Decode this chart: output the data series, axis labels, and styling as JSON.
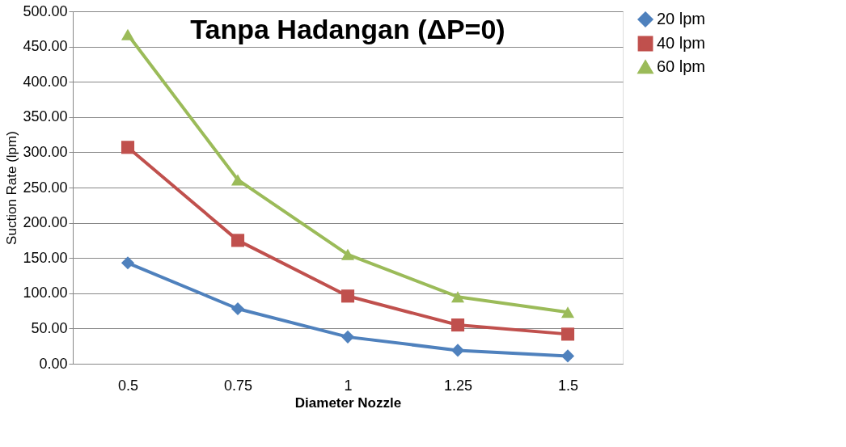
{
  "chart_data": {
    "type": "line",
    "title": "Tanpa Hadangan (ΔP=0)",
    "xlabel": "Diameter Nozzle",
    "ylabel": "Suction Rate (lpm)",
    "categories": [
      "0.5",
      "0.75",
      "1",
      "1.25",
      "1.5"
    ],
    "series": [
      {
        "name": "20 lpm",
        "color": "#4f81bd",
        "marker": "diamond",
        "values": [
          143,
          78,
          38,
          19,
          11
        ]
      },
      {
        "name": "40 lpm",
        "color": "#c0504d",
        "marker": "square",
        "values": [
          307,
          175,
          96,
          55,
          42
        ]
      },
      {
        "name": "60 lpm",
        "color": "#9bbb59",
        "marker": "triangle",
        "values": [
          467,
          261,
          155,
          95,
          73
        ]
      }
    ],
    "ylim": [
      0,
      500
    ],
    "yticks": [
      {
        "value": 0,
        "label": "0.00"
      },
      {
        "value": 50,
        "label": "50.00"
      },
      {
        "value": 100,
        "label": "100.00"
      },
      {
        "value": 150,
        "label": "150.00"
      },
      {
        "value": 200,
        "label": "200.00"
      },
      {
        "value": 250,
        "label": "250.00"
      },
      {
        "value": 300,
        "label": "300.00"
      },
      {
        "value": 350,
        "label": "350.00"
      },
      {
        "value": 400,
        "label": "400.00"
      },
      {
        "value": 450,
        "label": "450.00"
      },
      {
        "value": 500,
        "label": "500.00"
      }
    ],
    "grid": "y",
    "legend": "right",
    "line_style": "solid"
  }
}
